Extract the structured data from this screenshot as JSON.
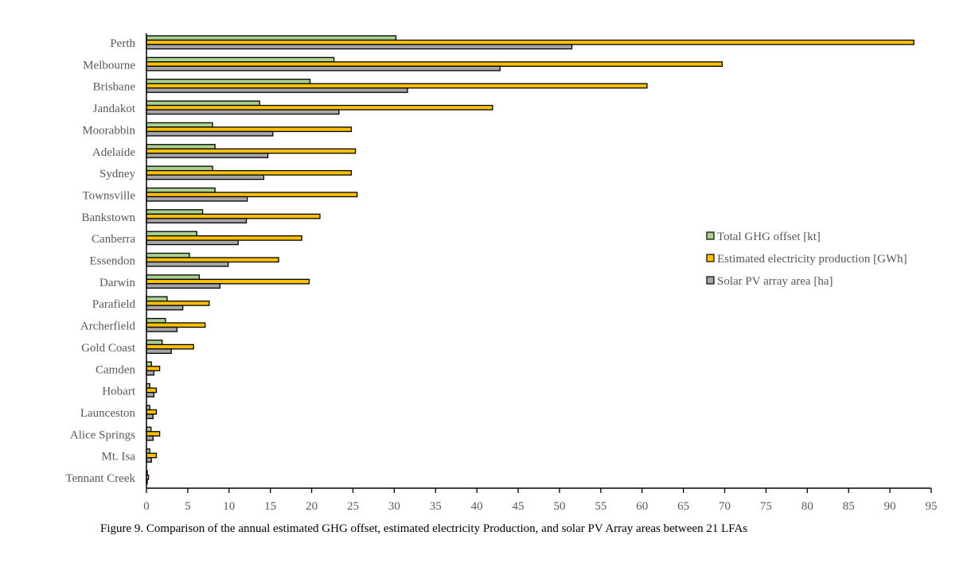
{
  "chart_data": {
    "type": "bar",
    "orientation": "horizontal",
    "categories": [
      "Perth",
      "Melbourne",
      "Brisbane",
      "Jandakot",
      "Moorabbin",
      "Adelaide",
      "Sydney",
      "Townsville",
      "Bankstown",
      "Canberra",
      "Essendon",
      "Darwin",
      "Parafield",
      "Archerfield",
      "Gold Coast",
      "Camden",
      "Hobart",
      "Launceston",
      "Alice Springs",
      "Mt. Isa",
      "Tennant Creek"
    ],
    "series": [
      {
        "name": "Total GHG offset [kt]",
        "color": "#a9d18e",
        "values": [
          30.2,
          22.7,
          19.8,
          13.7,
          8.0,
          8.3,
          8.0,
          8.3,
          6.8,
          6.1,
          5.2,
          6.4,
          2.5,
          2.3,
          1.9,
          0.6,
          0.4,
          0.4,
          0.55,
          0.4,
          0.1
        ]
      },
      {
        "name": "Estimated electricity production [GWh]",
        "color": "#ffc000",
        "values": [
          92.9,
          69.7,
          60.6,
          41.9,
          24.8,
          25.3,
          24.8,
          25.5,
          21.0,
          18.8,
          16.0,
          19.7,
          7.6,
          7.1,
          5.7,
          1.6,
          1.2,
          1.2,
          1.6,
          1.2,
          0.25
        ]
      },
      {
        "name": "Solar PV array area [ha]",
        "color": "#a6a6a6",
        "values": [
          51.5,
          42.8,
          31.6,
          23.3,
          15.3,
          14.7,
          14.2,
          12.2,
          12.1,
          11.1,
          9.9,
          8.9,
          4.4,
          3.7,
          3.0,
          0.9,
          0.9,
          0.8,
          0.8,
          0.6,
          0.1
        ]
      }
    ],
    "xlim": [
      0,
      95
    ],
    "xticks": [
      "0",
      "5",
      "10",
      "15",
      "20",
      "25",
      "30",
      "35",
      "40",
      "45",
      "50",
      "55",
      "60",
      "65",
      "70",
      "75",
      "80",
      "85",
      "90",
      "95"
    ],
    "legend_position": "right",
    "grid": false,
    "caption": "Figure 9. Comparison of the annual estimated GHG offset, estimated electricity Production, and solar PV Array areas between 21 LFAs"
  }
}
